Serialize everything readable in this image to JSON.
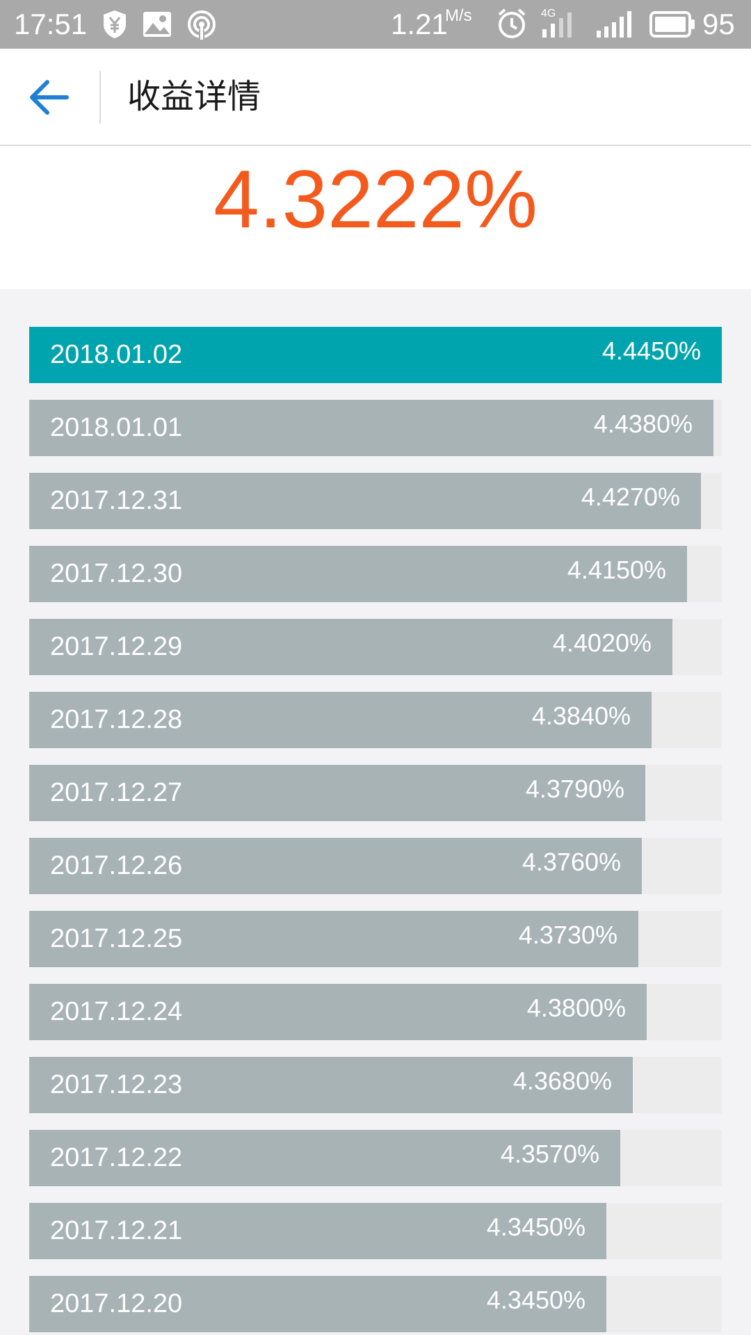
{
  "status_bar": {
    "time": "17:51",
    "speed": "1.21",
    "speed_unit": "M/s",
    "network": "4G",
    "battery": "95",
    "icons": [
      "shield-yen-icon",
      "image-icon",
      "hotspot-icon",
      "alarm-icon",
      "mobile-signal-icon",
      "wifi-signal-icon",
      "battery-icon"
    ]
  },
  "header": {
    "title": "收益详情",
    "back_icon": "arrow-left-icon"
  },
  "summary": {
    "rate": "4.3222%"
  },
  "colors": {
    "accent_rate": "#f35a1d",
    "bar_active": "#00a4ae",
    "bar_default": "#a8b3b6",
    "back_arrow": "#1f7fd6"
  },
  "chart_data": {
    "type": "bar",
    "orientation": "horizontal",
    "categories": [
      "2018.01.02",
      "2018.01.01",
      "2017.12.31",
      "2017.12.30",
      "2017.12.29",
      "2017.12.28",
      "2017.12.27",
      "2017.12.26",
      "2017.12.25",
      "2017.12.24",
      "2017.12.23",
      "2017.12.22",
      "2017.12.21",
      "2017.12.20"
    ],
    "values": [
      4.445,
      4.438,
      4.427,
      4.415,
      4.402,
      4.384,
      4.379,
      4.376,
      4.373,
      4.38,
      4.368,
      4.357,
      4.345,
      4.345
    ],
    "labels": [
      "4.4450%",
      "4.4380%",
      "4.4270%",
      "4.4150%",
      "4.4020%",
      "4.3840%",
      "4.3790%",
      "4.3760%",
      "4.3730%",
      "4.3800%",
      "4.3680%",
      "4.3570%",
      "4.3450%",
      "4.3450%"
    ],
    "highlighted_index": 0
  }
}
